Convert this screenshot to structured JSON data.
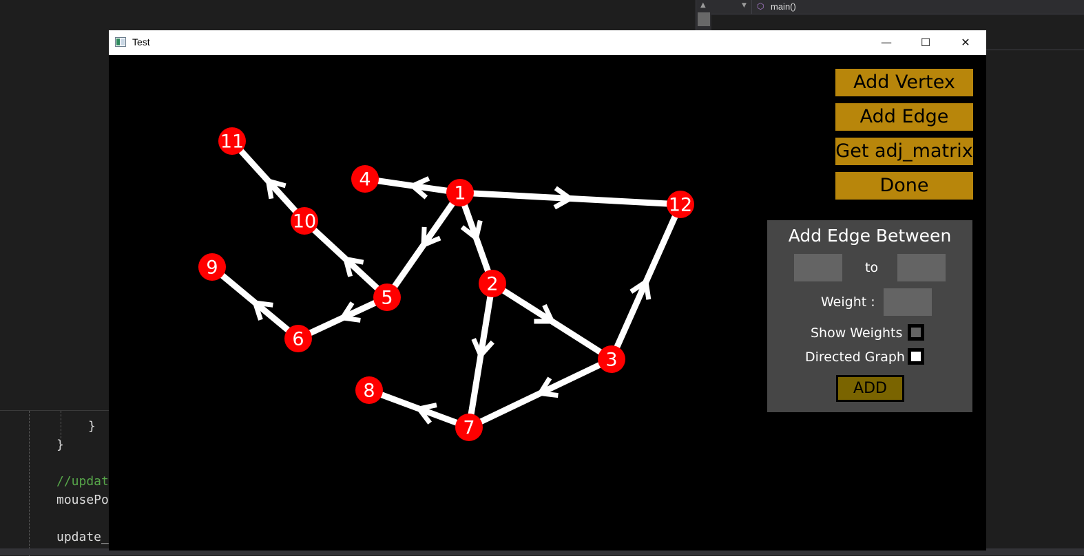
{
  "ide": {
    "function_dropdown": "main()",
    "code_lines": [
      "}",
      "}",
      "//updat",
      "mousePo",
      "update_"
    ]
  },
  "window": {
    "title": "Test",
    "minimize_glyph": "—",
    "maximize_glyph": "☐",
    "close_glyph": "✕"
  },
  "menu": {
    "add_vertex": "Add Vertex",
    "add_edge": "Add Edge",
    "get_adj_matrix": "Get adj_matrix",
    "done": "Done"
  },
  "edge_panel": {
    "title": "Add Edge Between",
    "to_label": "to",
    "weight_label": "Weight :",
    "show_weights_label": "Show Weights :",
    "show_weights_checked": false,
    "directed_label": "Directed Graph :",
    "directed_checked": true,
    "add_button": "ADD"
  },
  "graph": {
    "directed": true,
    "vertices": [
      "1",
      "2",
      "3",
      "4",
      "5",
      "6",
      "7",
      "8",
      "9",
      "10",
      "11",
      "12"
    ],
    "edges": [
      [
        "1",
        "4"
      ],
      [
        "1",
        "12"
      ],
      [
        "1",
        "5"
      ],
      [
        "1",
        "2"
      ],
      [
        "2",
        "3"
      ],
      [
        "2",
        "7"
      ],
      [
        "3",
        "7"
      ],
      [
        "3",
        "12"
      ],
      [
        "5",
        "10"
      ],
      [
        "10",
        "11"
      ],
      [
        "5",
        "6"
      ],
      [
        "6",
        "9"
      ],
      [
        "7",
        "8"
      ]
    ]
  },
  "colors": {
    "vertex": "#ff0000",
    "edge": "#ffffff",
    "menu_button": "#b8860b",
    "panel": "#464646",
    "add_button": "#7a6400"
  }
}
